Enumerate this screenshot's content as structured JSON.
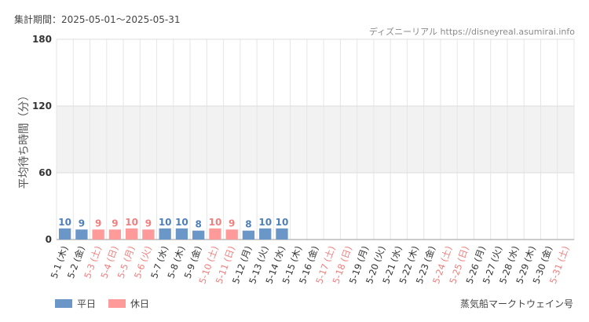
{
  "header": {
    "period": "集計期間：2025-05-01～2025-05-31",
    "source": "ディズニーリアル https://disneyreal.asumirai.info"
  },
  "legend": {
    "weekday": "平日",
    "holiday": "休日"
  },
  "footer": {
    "attraction": "蒸気船マークトウェイン号"
  },
  "colors": {
    "weekday": "#6a96c8",
    "holiday": "#ff9a9a",
    "band": "#f2f2f2",
    "grid": "#e6e6e6"
  },
  "chart_data": {
    "type": "bar",
    "ylabel": "平均待ち時間（分）",
    "ylim": [
      0,
      180
    ],
    "yticks": [
      0,
      60,
      120,
      180
    ],
    "shaded_band": [
      60,
      120
    ],
    "categories": [
      "5-1 (木)",
      "5-2 (金)",
      "5-3 (土)",
      "5-4 (日)",
      "5-5 (月)",
      "5-6 (火)",
      "5-7 (水)",
      "5-8 (木)",
      "5-9 (金)",
      "5-10 (土)",
      "5-11 (日)",
      "5-12 (月)",
      "5-13 (火)",
      "5-14 (水)",
      "5-15 (木)",
      "5-16 (金)",
      "5-17 (土)",
      "5-18 (日)",
      "5-19 (月)",
      "5-20 (火)",
      "5-21 (水)",
      "5-22 (木)",
      "5-23 (金)",
      "5-24 (土)",
      "5-25 (日)",
      "5-26 (月)",
      "5-27 (火)",
      "5-28 (水)",
      "5-29 (木)",
      "5-30 (金)",
      "5-31 (土)"
    ],
    "holiday": [
      false,
      false,
      true,
      true,
      true,
      true,
      false,
      false,
      false,
      true,
      true,
      false,
      false,
      false,
      false,
      false,
      true,
      true,
      false,
      false,
      false,
      false,
      false,
      true,
      true,
      false,
      false,
      false,
      false,
      false,
      true
    ],
    "values": [
      10,
      9,
      9,
      9,
      10,
      9,
      10,
      10,
      8,
      10,
      9,
      8,
      10,
      10,
      null,
      null,
      null,
      null,
      null,
      null,
      null,
      null,
      null,
      null,
      null,
      null,
      null,
      null,
      null,
      null,
      null
    ]
  }
}
